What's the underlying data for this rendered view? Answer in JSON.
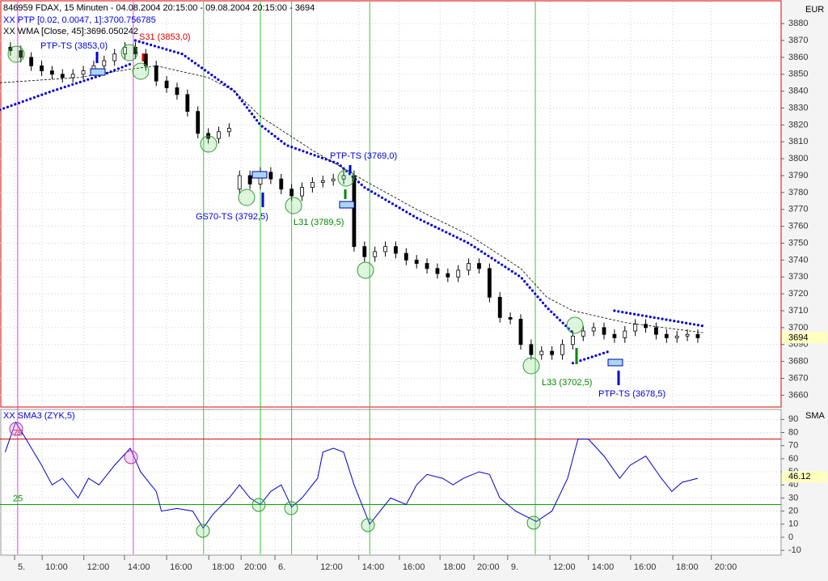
{
  "chart_data": {
    "type": "candlestick",
    "header": [
      "846959  FDAX, 15 Minuten - 04.08.2004 20:15:00 - 09.08.2004 20:15:00 - 3694",
      "XX PTP [0.02, 0.0047, 1]:3700.756785",
      "XX WMA [Close, 45]:3696.050242"
    ],
    "y_axis_label": "EUR",
    "xlim": [
      0,
      150
    ],
    "xticks": [
      {
        "value": 2.8,
        "label": "5."
      },
      {
        "value": 8.1,
        "label": "10:00"
      },
      {
        "value": 16.1,
        "label": "12:00"
      },
      {
        "value": 23.9,
        "label": "14:00"
      },
      {
        "value": 32,
        "label": "16:00"
      },
      {
        "value": 40.1,
        "label": "18:00"
      },
      {
        "value": 46.3,
        "label": "20:00"
      },
      {
        "value": 52.8,
        "label": "6."
      },
      {
        "value": 60.9,
        "label": "12:00"
      },
      {
        "value": 68.9,
        "label": "14:00"
      },
      {
        "value": 76.7,
        "label": "16:00"
      },
      {
        "value": 84.5,
        "label": "18:00"
      },
      {
        "value": 91,
        "label": "20:00"
      },
      {
        "value": 97.5,
        "label": "9."
      },
      {
        "value": 105.6,
        "label": "12:00"
      },
      {
        "value": 113,
        "label": "14:00"
      },
      {
        "value": 121.1,
        "label": "16:00"
      },
      {
        "value": 129.2,
        "label": "18:00"
      },
      {
        "value": 136.6,
        "label": "20:00"
      }
    ],
    "ylim": [
      3653,
      3893
    ],
    "yticks": [
      3660,
      3670,
      3680,
      3690,
      3700,
      3710,
      3720,
      3730,
      3740,
      3750,
      3760,
      3770,
      3780,
      3790,
      3800,
      3810,
      3820,
      3830,
      3840,
      3850,
      3860,
      3870,
      3880
    ],
    "grid": true,
    "last_value": 3694,
    "candles": {
      "x": [
        2,
        4,
        6,
        8,
        10,
        12,
        14,
        16,
        18,
        20,
        22,
        24,
        26,
        28,
        30,
        32,
        34,
        36,
        38,
        40,
        42,
        44,
        46,
        48,
        50,
        52,
        54,
        56,
        58,
        60,
        62,
        64,
        66,
        68,
        70,
        72,
        74,
        76,
        78,
        80,
        82,
        84,
        86,
        88,
        90,
        92,
        94,
        96,
        98,
        100,
        102,
        104,
        106,
        108,
        110,
        112,
        114,
        116,
        118,
        120,
        122,
        124,
        126,
        128,
        130,
        132,
        134
      ],
      "open": [
        3866,
        3864,
        3860,
        3855,
        3852,
        3850,
        3848,
        3850,
        3852,
        3855,
        3858,
        3862,
        3866,
        3862,
        3855,
        3846,
        3842,
        3838,
        3828,
        3815,
        3812,
        3816,
        3782,
        3790,
        3785,
        3792,
        3788,
        3782,
        3778,
        3783,
        3786,
        3787,
        3788,
        3790,
        3748,
        3742,
        3745,
        3748,
        3744,
        3740,
        3738,
        3735,
        3732,
        3730,
        3734,
        3738,
        3735,
        3718,
        3706,
        3705,
        3690,
        3684,
        3686,
        3684,
        3690,
        3695,
        3698,
        3700,
        3696,
        3694,
        3698,
        3702,
        3700,
        3696,
        3694,
        3695,
        3696
      ],
      "high": [
        3869,
        3867,
        3863,
        3858,
        3855,
        3853,
        3853,
        3855,
        3858,
        3861,
        3865,
        3869,
        3869,
        3865,
        3858,
        3849,
        3845,
        3841,
        3831,
        3818,
        3819,
        3821,
        3793,
        3793,
        3795,
        3795,
        3791,
        3785,
        3786,
        3789,
        3790,
        3791,
        3793,
        3793,
        3751,
        3748,
        3751,
        3751,
        3747,
        3743,
        3741,
        3738,
        3735,
        3737,
        3741,
        3741,
        3738,
        3721,
        3709,
        3708,
        3693,
        3689,
        3689,
        3693,
        3698,
        3701,
        3703,
        3703,
        3699,
        3701,
        3705,
        3705,
        3703,
        3699,
        3698,
        3699,
        3699
      ],
      "low": [
        3861,
        3857,
        3852,
        3849,
        3847,
        3845,
        3845,
        3847,
        3849,
        3852,
        3855,
        3859,
        3859,
        3852,
        3843,
        3839,
        3835,
        3825,
        3812,
        3809,
        3809,
        3813,
        3779,
        3782,
        3782,
        3785,
        3779,
        3775,
        3775,
        3780,
        3783,
        3784,
        3785,
        3745,
        3739,
        3739,
        3742,
        3741,
        3737,
        3735,
        3732,
        3729,
        3727,
        3727,
        3731,
        3732,
        3715,
        3703,
        3702,
        3687,
        3681,
        3681,
        3681,
        3681,
        3687,
        3692,
        3695,
        3693,
        3691,
        3691,
        3695,
        3697,
        3693,
        3691,
        3691,
        3692,
        3691
      ],
      "close": [
        3864,
        3860,
        3855,
        3852,
        3850,
        3848,
        3850,
        3852,
        3855,
        3858,
        3862,
        3866,
        3862,
        3855,
        3846,
        3842,
        3838,
        3828,
        3815,
        3812,
        3816,
        3818,
        3790,
        3785,
        3792,
        3788,
        3782,
        3778,
        3783,
        3786,
        3787,
        3788,
        3790,
        3748,
        3742,
        3745,
        3748,
        3744,
        3740,
        3738,
        3735,
        3732,
        3730,
        3734,
        3738,
        3735,
        3718,
        3706,
        3705,
        3690,
        3684,
        3686,
        3684,
        3690,
        3695,
        3698,
        3700,
        3696,
        3694,
        3698,
        3702,
        3700,
        3696,
        3694,
        3695,
        3696,
        3694
      ]
    },
    "series": [
      {
        "name": "PTP",
        "color": "#0000dd",
        "x": [
          0,
          10,
          20,
          25,
          null,
          26,
          35,
          45,
          50,
          55,
          65,
          70,
          80,
          90,
          100,
          105,
          110,
          null,
          110,
          117,
          null,
          118,
          135
        ],
        "values": [
          3829,
          3840,
          3850,
          3856,
          null,
          3870,
          3862,
          3840,
          3820,
          3808,
          3797,
          3783,
          3765,
          3750,
          3730,
          3712,
          3697,
          null,
          3679,
          3686,
          null,
          3710,
          3701
        ]
      },
      {
        "name": "WMA",
        "color": "#000000",
        "x": [
          0,
          15,
          25,
          30,
          40,
          45,
          50,
          60,
          70,
          80,
          90,
          100,
          105,
          110,
          120,
          135
        ],
        "values": [
          3845,
          3848,
          3853,
          3855,
          3848,
          3840,
          3825,
          3805,
          3787,
          3770,
          3755,
          3735,
          3718,
          3710,
          3703,
          3697
        ]
      }
    ],
    "annotations": [
      {
        "text": "PTP-TS (3853,0)",
        "color": "#0000dd"
      },
      {
        "text": "S31 (3853,0)",
        "color": "#dd0000"
      },
      {
        "text": "PTP-TS (3769,0)",
        "color": "#0000dd"
      },
      {
        "text": "GS70-TS (3792,5)",
        "color": "#0000dd"
      },
      {
        "text": "L31 (3789,5)",
        "color": "#008800"
      },
      {
        "text": "L33 (3702,5)",
        "color": "#008800"
      },
      {
        "text": "PTP-TS (3678,5)",
        "color": "#0000dd"
      }
    ],
    "vlines": [
      {
        "x": 3.4,
        "color": "#dd44dd"
      },
      {
        "x": 25.6,
        "color": "#dd44dd"
      },
      {
        "x": 39.1,
        "color": "#33cc33"
      },
      {
        "x": 50,
        "color": "#33cc33"
      },
      {
        "x": 56,
        "color": "#33cc33"
      },
      {
        "x": 71,
        "color": "#33cc33"
      },
      {
        "x": 102.8,
        "color": "#33cc33"
      }
    ],
    "oscillator": {
      "title": "XX SMA3 (ZYK,5)",
      "axis_label": "SMA",
      "color": "#0000cc",
      "ylim": [
        -13,
        97
      ],
      "yticks": [
        -10,
        0,
        10,
        20,
        30,
        40,
        50,
        60,
        70,
        80,
        90
      ],
      "last_value": 46.12,
      "levels": [
        {
          "value": 75,
          "color": "#dd0000"
        },
        {
          "value": 25,
          "color": "#00aa00"
        }
      ],
      "x": [
        1,
        3,
        5,
        8,
        10,
        12,
        15,
        17,
        19,
        22,
        25,
        27,
        30,
        31,
        34,
        37,
        39,
        41,
        44,
        46,
        48,
        50,
        52,
        54,
        56,
        58,
        61,
        62,
        64,
        66,
        68,
        71,
        73,
        75,
        78,
        80,
        82,
        85,
        87,
        89,
        92,
        94,
        96,
        99,
        103,
        106,
        109,
        111,
        113,
        116,
        119,
        121,
        124,
        127,
        129,
        131,
        134
      ],
      "values": [
        65,
        88,
        75,
        55,
        40,
        45,
        30,
        45,
        40,
        55,
        68,
        50,
        35,
        20,
        22,
        20,
        7,
        18,
        30,
        40,
        30,
        25,
        35,
        40,
        23,
        30,
        45,
        65,
        68,
        65,
        40,
        10,
        20,
        30,
        25,
        40,
        48,
        45,
        40,
        45,
        50,
        48,
        30,
        20,
        12,
        20,
        45,
        75,
        75,
        62,
        45,
        55,
        62,
        45,
        35,
        42,
        45
      ]
    }
  }
}
